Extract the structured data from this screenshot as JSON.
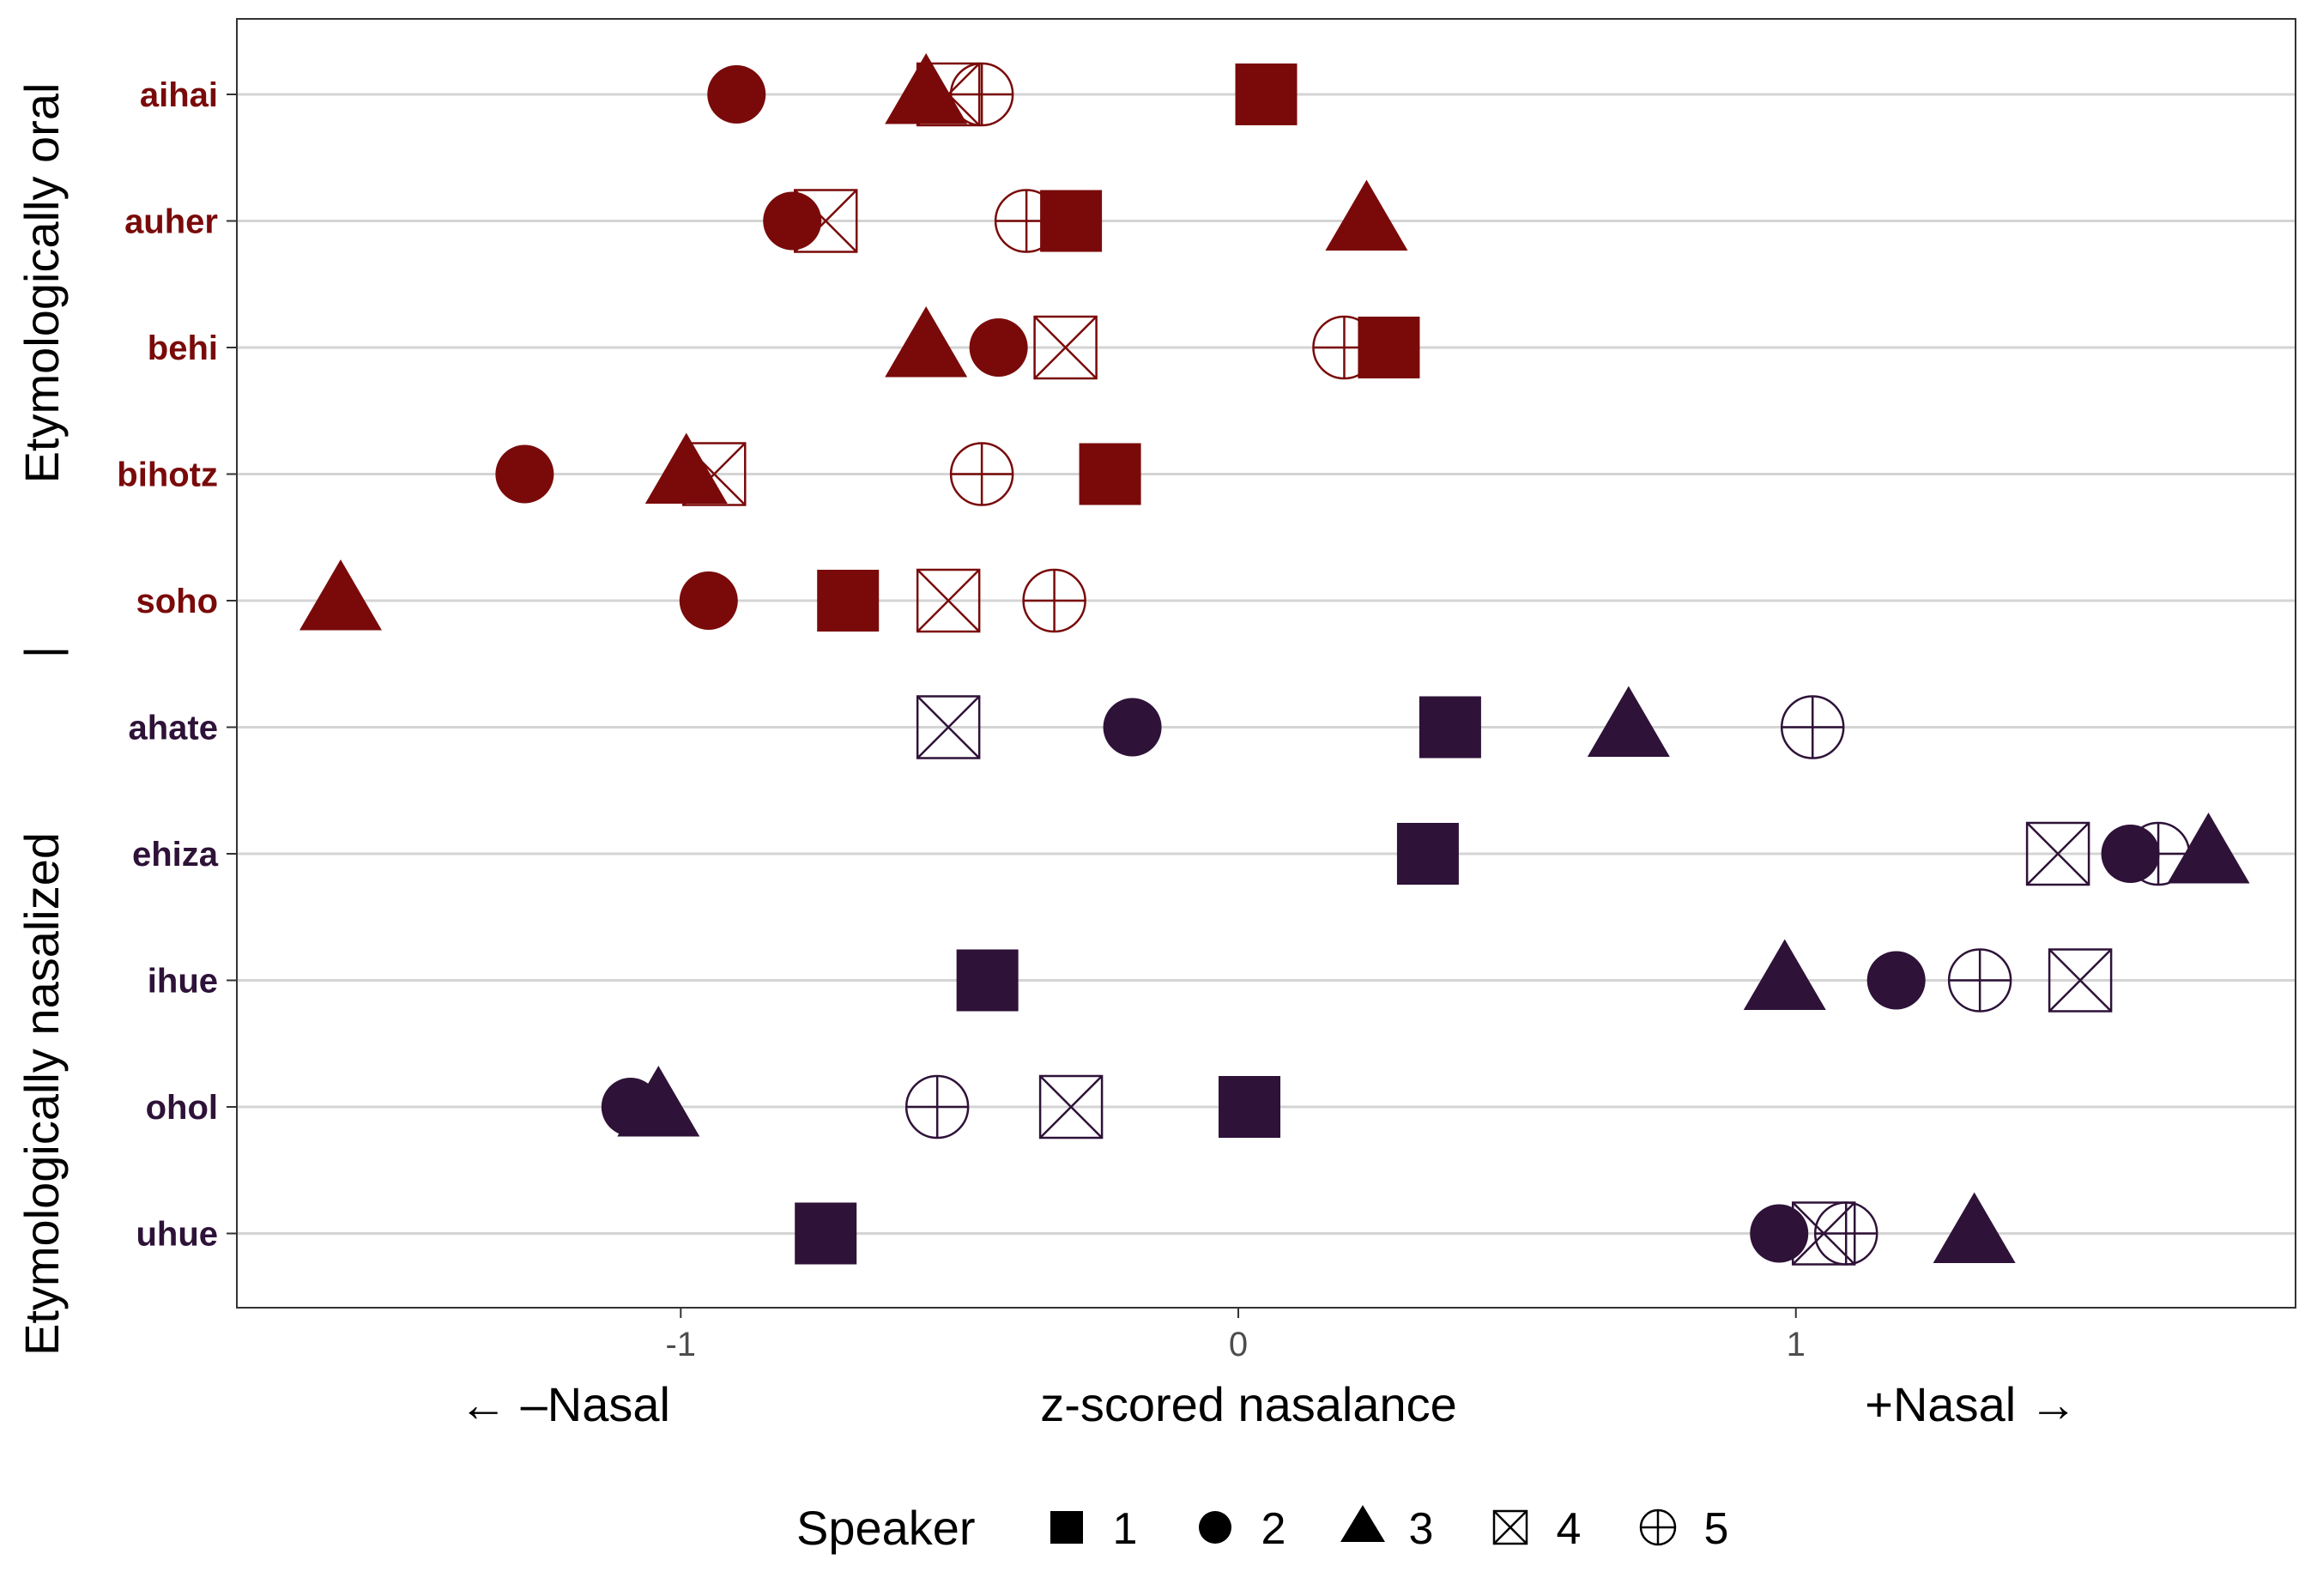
{
  "chart_data": {
    "type": "scatter",
    "x_axis": {
      "title": "z-scored nasalance",
      "left_annotation": "← –Nasal",
      "right_annotation": "+Nasal →",
      "ticks": [
        -1,
        0,
        1
      ],
      "tick_labels": [
        "-1",
        "0",
        "1"
      ],
      "xlim": [
        -1.79,
        1.89
      ]
    },
    "groups": [
      {
        "title": "Etymologically oral",
        "color": "#7a0a0a",
        "words": [
          "aihai",
          "auher",
          "behi",
          "bihotz",
          "soho"
        ]
      },
      {
        "title": "Etymologically nasalized",
        "color": "#2e1238",
        "words": [
          "ahate",
          "ehiza",
          "ihue",
          "ohol",
          "uhue"
        ]
      }
    ],
    "group_separator": "|",
    "legend": {
      "title": "Speaker",
      "placement": "bottom",
      "entries": [
        {
          "label": "1",
          "shape": "square"
        },
        {
          "label": "2",
          "shape": "circle"
        },
        {
          "label": "3",
          "shape": "triangle"
        },
        {
          "label": "4",
          "shape": "boxed-x"
        },
        {
          "label": "5",
          "shape": "circled-plus"
        }
      ]
    },
    "series": [
      {
        "name": "1",
        "shape": "square",
        "values": {
          "aihai": 0.05,
          "auher": -0.3,
          "behi": 0.27,
          "bihotz": -0.23,
          "soho": -0.7,
          "ahate": 0.38,
          "ehiza": 0.34,
          "ihue": -0.45,
          "ohol": 0.02,
          "uhue": -0.74
        }
      },
      {
        "name": "2",
        "shape": "circle",
        "values": {
          "aihai": -0.9,
          "auher": -0.8,
          "behi": -0.43,
          "bihotz": -1.28,
          "soho": -0.95,
          "ahate": -0.19,
          "ehiza": 1.6,
          "ihue": 1.18,
          "ohol": -1.09,
          "uhue": 0.97
        }
      },
      {
        "name": "3",
        "shape": "triangle",
        "values": {
          "aihai": -0.56,
          "auher": 0.23,
          "behi": -0.56,
          "bihotz": -0.99,
          "soho": -1.61,
          "ahate": 0.7,
          "ehiza": 1.74,
          "ihue": 0.98,
          "ohol": -1.04,
          "uhue": 1.32
        }
      },
      {
        "name": "4",
        "shape": "boxed-x",
        "values": {
          "aihai": -0.52,
          "auher": -0.74,
          "behi": -0.31,
          "bihotz": -0.94,
          "soho": -0.52,
          "ahate": -0.52,
          "ehiza": 1.47,
          "ihue": 1.51,
          "ohol": -0.3,
          "uhue": 1.05
        }
      },
      {
        "name": "5",
        "shape": "circled-plus",
        "values": {
          "aihai": -0.46,
          "auher": -0.38,
          "behi": 0.19,
          "bihotz": -0.46,
          "soho": -0.33,
          "ahate": 1.03,
          "ehiza": 1.65,
          "ihue": 1.33,
          "ohol": -0.54,
          "uhue": 1.09
        }
      }
    ]
  }
}
